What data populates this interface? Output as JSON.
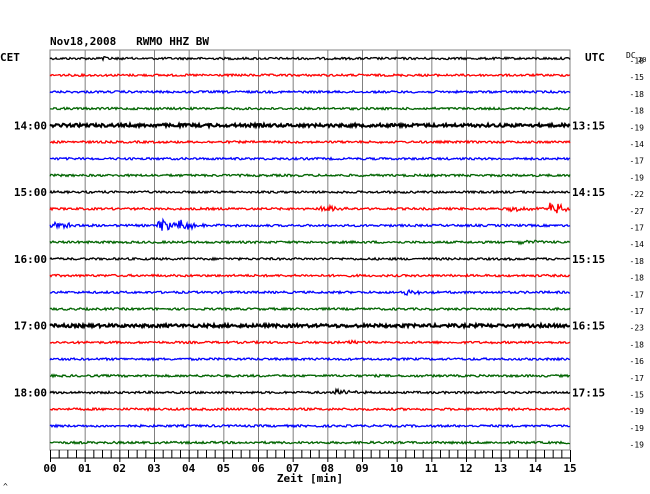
{
  "title": "Nov18,2008   RWMO HHZ BW",
  "left_zone_label": "CET",
  "right_zone_label": "UTC",
  "dc_label": "DC",
  "dc_sub": "20",
  "xlabel": "Zeit [min]",
  "corner_mark": "^",
  "colors": {
    "black": "#000000",
    "red": "#ff0000",
    "blue": "#0000ff",
    "green": "#006400",
    "grid": "#808080"
  },
  "chart_data": {
    "type": "line",
    "title": "Nov18,2008   RWMO HHZ BW",
    "xlabel": "Zeit [min]",
    "ylabel": "",
    "xlim": [
      0,
      15
    ],
    "x_ticks": [
      "00",
      "01",
      "02",
      "03",
      "04",
      "05",
      "06",
      "07",
      "08",
      "09",
      "10",
      "11",
      "12",
      "13",
      "14",
      "15"
    ],
    "grid": true,
    "left_hour_labels": [
      "14:00",
      "15:00",
      "16:00",
      "17:00",
      "18:00"
    ],
    "right_hour_labels": [
      "13:15",
      "14:15",
      "15:15",
      "16:15",
      "17:15"
    ],
    "hour_label_trace_index": [
      4,
      8,
      12,
      16,
      20
    ],
    "color_cycle": [
      "black",
      "red",
      "blue",
      "green"
    ],
    "dc_values": [
      "-18",
      "-15",
      "-18",
      "-18",
      "-19",
      "-14",
      "-17",
      "-19",
      "-22",
      "-27",
      "-17",
      "-14",
      "-18",
      "-18",
      "-17",
      "-17",
      "-23",
      "-18",
      "-16",
      "-17",
      "-15",
      "-19",
      "-19",
      "-19"
    ],
    "events": [
      {
        "trace": 0,
        "minute": 1.5,
        "amp": 0.3
      },
      {
        "trace": 9,
        "minute": 7.9,
        "amp": 0.6
      },
      {
        "trace": 9,
        "minute": 13.3,
        "amp": 0.5
      },
      {
        "trace": 9,
        "minute": 14.5,
        "amp": 1.0
      },
      {
        "trace": 10,
        "minute": 0.1,
        "amp": 0.8
      },
      {
        "trace": 10,
        "minute": 3.2,
        "amp": 1.0
      },
      {
        "trace": 10,
        "minute": 3.8,
        "amp": 0.9
      },
      {
        "trace": 10,
        "minute": 4.3,
        "amp": 0.4
      },
      {
        "trace": 11,
        "minute": 13.6,
        "amp": 0.4
      },
      {
        "trace": 14,
        "minute": 10.3,
        "amp": 0.4
      },
      {
        "trace": 17,
        "minute": 8.7,
        "amp": 0.3
      },
      {
        "trace": 20,
        "minute": 8.3,
        "amp": 0.5
      }
    ]
  }
}
